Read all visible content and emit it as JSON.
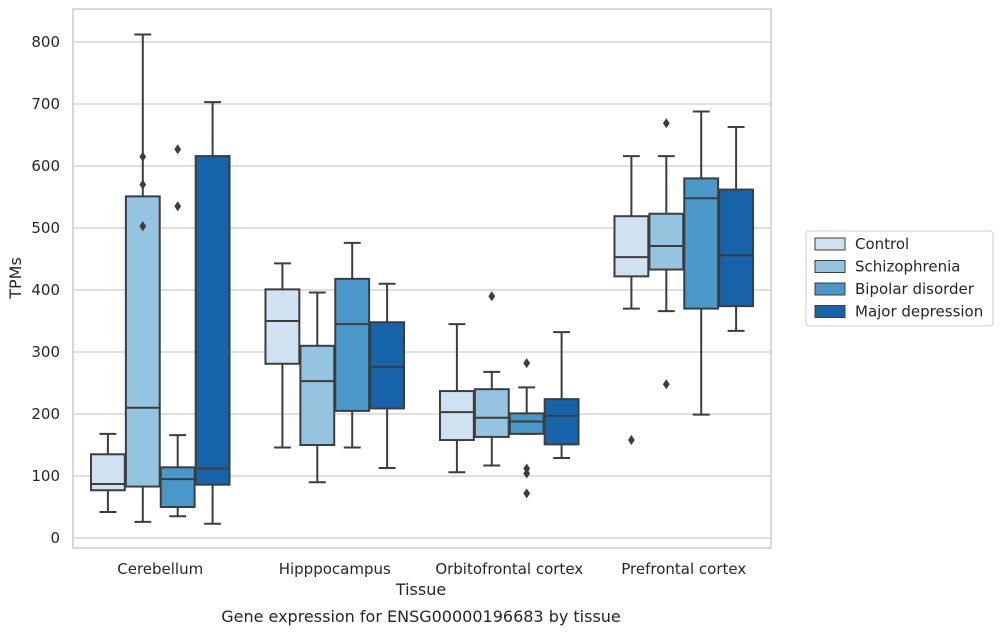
{
  "chart_data": {
    "type": "boxplot",
    "caption": "Gene expression for ENSG00000196683 by tissue",
    "xlabel": "Tissue",
    "ylabel": "TPMs",
    "ylim": [
      -15,
      855
    ],
    "yticks": [
      0,
      100,
      200,
      300,
      400,
      500,
      600,
      700,
      800
    ],
    "grid": "horizontal",
    "legend_placement": "right",
    "categories": [
      "Cerebellum",
      "Hipppocampus",
      "Orbitofrontal cortex",
      "Prefrontal cortex"
    ],
    "series": [
      {
        "name": "Control",
        "color": "#d0e1f2",
        "boxes": [
          {
            "whislo": 42,
            "q1": 77,
            "med": 87,
            "q3": 135,
            "whishi": 168,
            "fliers": []
          },
          {
            "whislo": 146,
            "q1": 281,
            "med": 350,
            "q3": 401,
            "whishi": 443,
            "fliers": []
          },
          {
            "whislo": 106,
            "q1": 158,
            "med": 203,
            "q3": 237,
            "whishi": 345,
            "fliers": []
          },
          {
            "whislo": 370,
            "q1": 422,
            "med": 453,
            "q3": 519,
            "whishi": 616,
            "fliers": [
              158
            ]
          }
        ]
      },
      {
        "name": "Schizophrenia",
        "color": "#94c4df",
        "boxes": [
          {
            "whislo": 26,
            "q1": 83,
            "med": 210,
            "q3": 551,
            "whishi": 812,
            "fliers": [
              503,
              570,
              615
            ]
          },
          {
            "whislo": 90,
            "q1": 150,
            "med": 253,
            "q3": 310,
            "whishi": 396,
            "fliers": []
          },
          {
            "whislo": 117,
            "q1": 163,
            "med": 194,
            "q3": 240,
            "whishi": 268,
            "fliers": [
              390
            ]
          },
          {
            "whislo": 366,
            "q1": 433,
            "med": 471,
            "q3": 523,
            "whishi": 616,
            "fliers": [
              248,
              669
            ]
          }
        ]
      },
      {
        "name": "Bipolar disorder",
        "color": "#4a98c9",
        "boxes": [
          {
            "whislo": 35,
            "q1": 50,
            "med": 95,
            "q3": 114,
            "whishi": 166,
            "fliers": [
              535,
              627
            ]
          },
          {
            "whislo": 146,
            "q1": 205,
            "med": 345,
            "q3": 418,
            "whishi": 476,
            "fliers": []
          },
          {
            "whislo": 168,
            "q1": 168,
            "med": 188,
            "q3": 201,
            "whishi": 243,
            "fliers": [
              72,
              104,
              112,
              282
            ]
          },
          {
            "whislo": 199,
            "q1": 370,
            "med": 548,
            "q3": 580,
            "whishi": 688,
            "fliers": []
          }
        ]
      },
      {
        "name": "Major depression",
        "color": "#1764ab",
        "boxes": [
          {
            "whislo": 23,
            "q1": 86,
            "med": 112,
            "q3": 616,
            "whishi": 703,
            "fliers": []
          },
          {
            "whislo": 113,
            "q1": 209,
            "med": 276,
            "q3": 348,
            "whishi": 410,
            "fliers": []
          },
          {
            "whislo": 129,
            "q1": 151,
            "med": 197,
            "q3": 224,
            "whishi": 332,
            "fliers": []
          },
          {
            "whislo": 334,
            "q1": 374,
            "med": 456,
            "q3": 562,
            "whishi": 663,
            "fliers": []
          }
        ]
      }
    ]
  }
}
